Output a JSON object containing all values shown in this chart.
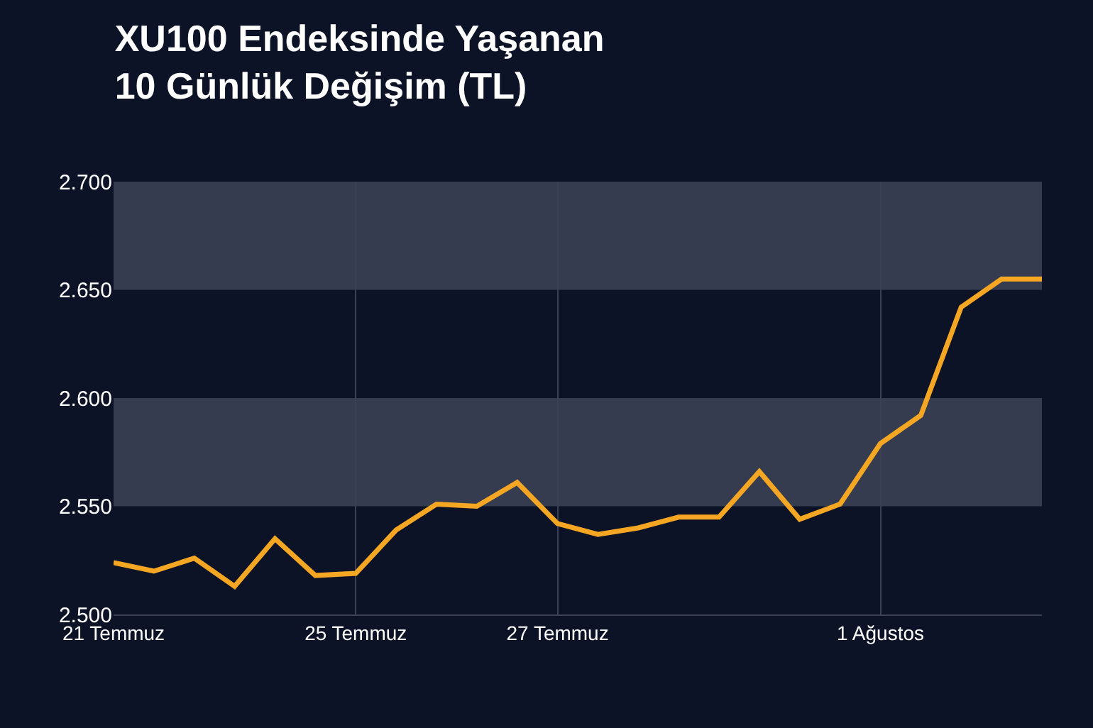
{
  "chart_data": {
    "type": "line",
    "title": "XU100 Endeksinde Yaşanan\n10 Günlük Değişim (TL)",
    "categories": [
      "21 Temmuz",
      null,
      null,
      null,
      null,
      null,
      "25 Temmuz",
      null,
      null,
      null,
      null,
      "27 Temmuz",
      null,
      null,
      null,
      null,
      null,
      null,
      null,
      "1 Ağustos",
      null,
      null,
      null,
      null
    ],
    "series": [
      {
        "color": "#f5a623",
        "values": [
          2524,
          2520,
          2526,
          2513,
          2535,
          2518,
          2519,
          2539,
          2551,
          2550,
          2561,
          2542,
          2537,
          2540,
          2545,
          2545,
          2566,
          2544,
          2551,
          2579,
          2592,
          2642,
          2655,
          2655
        ]
      }
    ],
    "ylim": [
      2500,
      2700
    ],
    "yticks": [
      {
        "value": 2500,
        "label": "2.500"
      },
      {
        "value": 2550,
        "label": "2.550"
      },
      {
        "value": 2600,
        "label": "2.600"
      },
      {
        "value": 2650,
        "label": "2.650"
      },
      {
        "value": 2700,
        "label": "2.700"
      }
    ],
    "bands": [
      {
        "axis": "y",
        "from": 2550,
        "to": 2600,
        "color": "#5a5f73"
      },
      {
        "axis": "y",
        "from": 2650,
        "to": 2700,
        "color": "#5a5f73"
      }
    ],
    "grid": "x",
    "marker": "none",
    "line_style": "solid"
  }
}
